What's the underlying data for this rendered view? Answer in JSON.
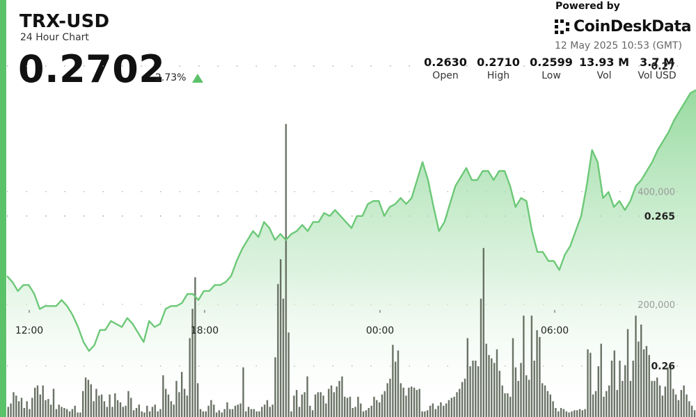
{
  "header": {
    "title": "TRX-USD",
    "subtitle": "24 Hour Chart",
    "price": "0.2702",
    "change": "2.73%",
    "change_direction_icon": "triangle-up-icon"
  },
  "branding": {
    "powered_by": "Powered by",
    "name": "CoinDeskData",
    "logo_icon": "coindesk-logo-icon"
  },
  "timestamp": "12 May 2025 10:53 (GMT)",
  "stats": [
    {
      "value": "0.2630",
      "label": "Open"
    },
    {
      "value": "0.2710",
      "label": "High"
    },
    {
      "value": "0.2599",
      "label": "Low"
    },
    {
      "value": "13.93 M",
      "label": "Vol"
    },
    {
      "value": "3.7 M",
      "label": "Vol USD"
    }
  ],
  "colors": {
    "accent": "#5cc26a",
    "line": "#6cc877",
    "volume_bar": "#5d6658"
  },
  "chart_data": {
    "type": "line",
    "x_axis": {
      "ticks": [
        "12:00",
        "18:00",
        "00:00",
        "06:00"
      ],
      "range": [
        "10:53",
        "10:53 (+24h)"
      ]
    },
    "price_axis": {
      "ticks": [
        0.26,
        0.265,
        0.27
      ],
      "tick_labels": [
        "0.26",
        "0.265",
        "0.27"
      ],
      "ylim": [
        0.2583,
        0.2722
      ]
    },
    "volume_axis": {
      "ticks": [
        200000,
        400000
      ],
      "tick_labels": [
        "200,000",
        "400,000"
      ],
      "ylim": [
        0,
        740000
      ]
    },
    "grid": "dotted-horizontal",
    "series": [
      {
        "kind": "price",
        "values": [
          0.263,
          0.2628,
          0.2625,
          0.2627,
          0.2627,
          0.2624,
          0.2619,
          0.262,
          0.262,
          0.262,
          0.2622,
          0.262,
          0.2617,
          0.2613,
          0.2608,
          0.2605,
          0.2607,
          0.2612,
          0.2612,
          0.2615,
          0.2614,
          0.2613,
          0.2616,
          0.2614,
          0.2611,
          0.2608,
          0.2615,
          0.2613,
          0.2614,
          0.2619,
          0.262,
          0.262,
          0.2621,
          0.2624,
          0.2624,
          0.2622,
          0.2625,
          0.2625,
          0.2627,
          0.2627,
          0.2628,
          0.263,
          0.2635,
          0.2639,
          0.2642,
          0.2645,
          0.2643,
          0.2648,
          0.2646,
          0.2642,
          0.2644,
          0.2642,
          0.2644,
          0.2645,
          0.2647,
          0.2645,
          0.2648,
          0.2648,
          0.2651,
          0.265,
          0.2652,
          0.265,
          0.2648,
          0.2646,
          0.265,
          0.265,
          0.2654,
          0.2655,
          0.2655,
          0.265,
          0.2653,
          0.2654,
          0.2656,
          0.2654,
          0.2656,
          0.2662,
          0.2668,
          0.2662,
          0.2653,
          0.2645,
          0.2648,
          0.2654,
          0.266,
          0.2663,
          0.2666,
          0.2662,
          0.2662,
          0.2665,
          0.2665,
          0.2662,
          0.2665,
          0.2665,
          0.266,
          0.2653,
          0.2656,
          0.2655,
          0.2645,
          0.2638,
          0.2638,
          0.2635,
          0.2635,
          0.2632,
          0.2637,
          0.264,
          0.2645,
          0.265,
          0.266,
          0.2672,
          0.2668,
          0.2656,
          0.2658,
          0.2653,
          0.2655,
          0.2652,
          0.2655,
          0.266,
          0.2662,
          0.2665,
          0.2668,
          0.2672,
          0.2675,
          0.2678,
          0.2682,
          0.2685,
          0.2688,
          0.2691,
          0.2692
        ]
      },
      {
        "kind": "volume",
        "values": [
          18000,
          24000,
          44000,
          38000,
          28000,
          34000,
          16000,
          28000,
          14000,
          34000,
          52000,
          56000,
          40000,
          56000,
          30000,
          32000,
          22000,
          50000,
          14000,
          22000,
          18000,
          16000,
          14000,
          10000,
          14000,
          20000,
          8000,
          8000,
          46000,
          70000,
          66000,
          58000,
          28000,
          50000,
          38000,
          40000,
          28000,
          18000,
          40000,
          18000,
          42000,
          30000,
          26000,
          18000,
          20000,
          46000,
          34000,
          12000,
          16000,
          22000,
          10000,
          8000,
          20000,
          10000,
          18000,
          22000,
          10000,
          14000,
          74000,
          50000,
          40000,
          28000,
          22000,
          64000,
          44000,
          80000,
          50000,
          38000,
          140000,
          192000,
          248000,
          60000,
          14000,
          10000,
          10000,
          20000,
          30000,
          22000,
          8000,
          12000,
          8000,
          14000,
          26000,
          14000,
          14000,
          20000,
          22000,
          24000,
          88000,
          10000,
          18000,
          14000,
          14000,
          10000,
          10000,
          18000,
          22000,
          30000,
          18000,
          22000,
          106000,
          236000,
          280000,
          210000,
          520000,
          150000,
          10000,
          38000,
          48000,
          18000,
          40000,
          44000,
          72000,
          20000,
          12000,
          40000,
          44000,
          44000,
          38000,
          24000,
          50000,
          56000,
          44000,
          54000,
          64000,
          72000,
          36000,
          34000,
          36000,
          16000,
          18000,
          36000,
          24000,
          10000,
          12000,
          16000,
          20000,
          36000,
          30000,
          26000,
          40000,
          46000,
          60000,
          68000,
          128000,
          98000,
          118000,
          60000,
          52000,
          38000,
          52000,
          54000,
          52000,
          48000,
          50000,
          10000,
          10000,
          12000,
          20000,
          24000,
          14000,
          20000,
          26000,
          20000,
          24000,
          30000,
          34000,
          36000,
          44000,
          50000,
          62000,
          68000,
          140000,
          90000,
          100000,
          100000,
          90000,
          210000,
          300000,
          130000,
          110000,
          104000,
          96000,
          120000,
          82000,
          56000,
          42000,
          42000,
          36000,
          140000,
          88000,
          64000,
          96000,
          180000,
          74000,
          66000,
          180000,
          100000,
          154000,
          142000,
          60000,
          56000,
          46000,
          40000,
          28000,
          16000,
          10000,
          16000,
          14000,
          10000,
          8000,
          10000,
          12000,
          12000,
          14000,
          12000,
          14000,
          120000,
          114000,
          40000,
          46000,
          90000,
          130000,
          36000,
          46000,
          56000,
          100000,
          118000,
          48000,
          100000,
          64000,
          92000,
          156000,
          64000,
          100000,
          180000,
          134000,
          164000,
          120000,
          126000,
          110000,
          64000,
          64000,
          70000,
          56000,
          38000,
          54000,
          88000,
          92000,
          50000,
          40000,
          30000,
          48000,
          56000,
          40000,
          28000,
          20000,
          12000
        ]
      }
    ]
  }
}
